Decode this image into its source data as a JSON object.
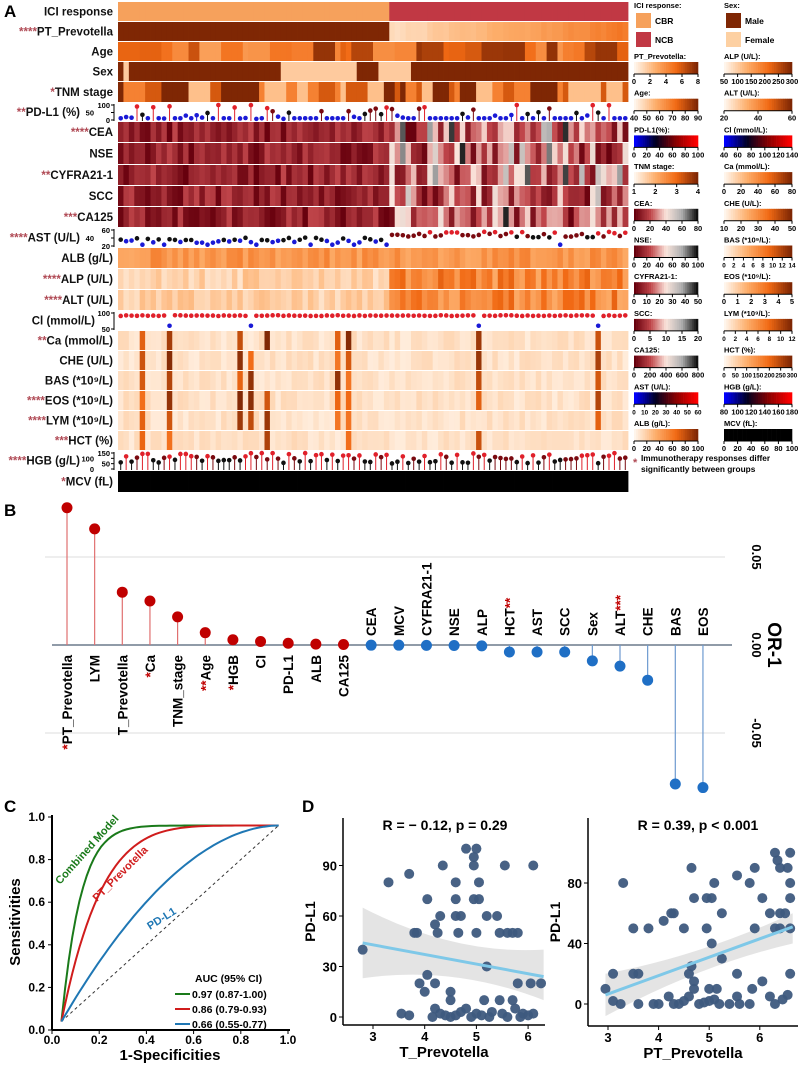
{
  "panels": {
    "a": "A",
    "b": "B",
    "c": "C",
    "d": "D"
  },
  "heatmap": {
    "n_columns": 94,
    "n_cbr": 50,
    "rows": [
      {
        "label": "ICI response",
        "stars": "",
        "palette": "group"
      },
      {
        "label": "PT_Prevotella",
        "stars": "****",
        "palette": "prevotella"
      },
      {
        "label": "Age",
        "stars": "",
        "palette": "orange-block"
      },
      {
        "label": "Sex",
        "stars": "",
        "palette": "binary"
      },
      {
        "label": "TNM stage",
        "stars": "*",
        "palette": "orange-level"
      },
      {
        "label": "PD-L1 (%)",
        "stars": "**",
        "palette": "lollipop-pdl1",
        "ticks": [
          "100",
          "50",
          "0"
        ]
      },
      {
        "label": "CEA",
        "stars": "****",
        "palette": "red-gray"
      },
      {
        "label": "NSE",
        "stars": "",
        "palette": "red-gray"
      },
      {
        "label": "CYFRA21-1",
        "stars": "**",
        "palette": "red-gray"
      },
      {
        "label": "SCC",
        "stars": "",
        "palette": "red-gray"
      },
      {
        "label": "CA125",
        "stars": "***",
        "palette": "red-gray"
      },
      {
        "label": "AST (U/L)",
        "stars": "****",
        "palette": "lollipop-ast",
        "ticks": [
          "60",
          "40",
          "20"
        ]
      },
      {
        "label": "ALB (g/L)",
        "stars": "",
        "palette": "orange-mid"
      },
      {
        "label": "ALP (U/L)",
        "stars": "****",
        "palette": "orange-split"
      },
      {
        "label": "ALT (U/L)",
        "stars": "****",
        "palette": "orange-split"
      },
      {
        "label": "Cl (mmol/L)",
        "stars": "",
        "palette": "lollipop-cl",
        "ticks": [
          "100",
          "50"
        ]
      },
      {
        "label": "Ca (mmol/L)",
        "stars": "**",
        "palette": "pale-spike"
      },
      {
        "label": "CHE (U/L)",
        "stars": "",
        "palette": "pale-spike"
      },
      {
        "label": "BAS (*10⁹/L)",
        "stars": "",
        "palette": "pale-spike"
      },
      {
        "label": "EOS (*10⁹/L)",
        "stars": "****",
        "palette": "pale-spike"
      },
      {
        "label": "LYM (*10⁹/L)",
        "stars": "****",
        "palette": "pale-spike"
      },
      {
        "label": "HCT (%)",
        "stars": "***",
        "palette": "pale-spike"
      },
      {
        "label": "HGB (g/L)",
        "stars": "****",
        "palette": "lollipop-hgb",
        "ticks": [
          "150",
          "100",
          "50",
          "0"
        ]
      },
      {
        "label": "MCV (fL)",
        "stars": "*",
        "palette": "gray"
      }
    ]
  },
  "legend": {
    "left": [
      {
        "title": "ICI response:",
        "type": "cat",
        "items": [
          {
            "label": "CBR",
            "color": "#f6a15c"
          },
          {
            "label": "NCB",
            "color": "#c13844"
          }
        ]
      },
      {
        "title": "PT_Prevotella:",
        "type": "orange",
        "ticks": [
          "0",
          "2",
          "4",
          "6",
          "8"
        ]
      },
      {
        "title": "Age:",
        "type": "orange",
        "ticks": [
          "40",
          "50",
          "60",
          "70",
          "80",
          "90"
        ]
      },
      {
        "title": "PD-L1(%):",
        "type": "blue-red",
        "ticks": [
          "0",
          "20",
          "40",
          "60",
          "80",
          "100"
        ]
      },
      {
        "title": "TNM stage:",
        "type": "orange",
        "ticks": [
          "1",
          "2",
          "3",
          "4"
        ]
      },
      {
        "title": "CEA:",
        "type": "red-gray",
        "ticks": [
          "0",
          "20",
          "40",
          "60",
          "80"
        ]
      },
      {
        "title": "NSE:",
        "type": "red-gray",
        "ticks": [
          "0",
          "20",
          "40",
          "60",
          "80",
          "100"
        ]
      },
      {
        "title": "CYFRA21-1:",
        "type": "red-gray",
        "ticks": [
          "0",
          "10",
          "20",
          "30",
          "40",
          "50"
        ]
      },
      {
        "title": "SCC:",
        "type": "red-gray",
        "ticks": [
          "0",
          "5",
          "10",
          "15",
          "20"
        ]
      },
      {
        "title": "CA125:",
        "type": "red-gray",
        "ticks": [
          "0",
          "200",
          "400",
          "600",
          "800"
        ]
      },
      {
        "title": "AST (U/L):",
        "type": "blue-red",
        "ticks": [
          "0",
          "10",
          "20",
          "30",
          "40",
          "50",
          "60"
        ]
      },
      {
        "title": "ALB (g/L):",
        "type": "orange",
        "ticks": [
          "0",
          "20",
          "40",
          "60",
          "80",
          "100"
        ]
      }
    ],
    "right": [
      {
        "title": "Sex:",
        "type": "cat",
        "items": [
          {
            "label": "Male",
            "color": "#7f2704"
          },
          {
            "label": "Female",
            "color": "#fdd0a2"
          }
        ]
      },
      {
        "title": "ALP (U/L):",
        "type": "orange",
        "ticks": [
          "50",
          "100",
          "150",
          "200",
          "250",
          "300"
        ]
      },
      {
        "title": "ALT (U/L):",
        "type": "orange",
        "ticks": [
          "20",
          "40",
          "60"
        ]
      },
      {
        "title": "Cl (mmol/L):",
        "type": "blue-red",
        "ticks": [
          "40",
          "60",
          "80",
          "100",
          "120",
          "140"
        ]
      },
      {
        "title": "Ca (mmol/L):",
        "type": "orange",
        "ticks": [
          "0",
          "20",
          "40",
          "60",
          "80"
        ]
      },
      {
        "title": "CHE (U/L):",
        "type": "orange",
        "ticks": [
          "10",
          "20",
          "30",
          "40",
          "50"
        ]
      },
      {
        "title": "BAS (*10⁹/L):",
        "type": "orange",
        "ticks": [
          "0",
          "2",
          "4",
          "6",
          "8",
          "10",
          "12",
          "14"
        ]
      },
      {
        "title": "EOS (*10⁹/L):",
        "type": "orange",
        "ticks": [
          "0",
          "1",
          "2",
          "3",
          "4",
          "5"
        ]
      },
      {
        "title": "LYM (*10⁹/L):",
        "type": "orange",
        "ticks": [
          "0",
          "2",
          "4",
          "6",
          "8",
          "10",
          "12"
        ]
      },
      {
        "title": "HCT (%):",
        "type": "orange",
        "ticks": [
          "0",
          "50",
          "100",
          "150",
          "200",
          "250",
          "300"
        ]
      },
      {
        "title": "HGB (g/L):",
        "type": "blue-red",
        "ticks": [
          "80",
          "100",
          "120",
          "140",
          "160",
          "180"
        ]
      },
      {
        "title": "MCV (fL):",
        "type": "gray",
        "ticks": [
          "0",
          "20",
          "40",
          "60",
          "80",
          "100"
        ]
      }
    ],
    "note_star": "*",
    "note_line1": "Immunotherapy responses differ",
    "note_line2": "significantly between groups"
  },
  "chart_data": [
    {
      "type": "lollipop",
      "panel": "B",
      "ylabel": "OR-1",
      "ylim": [
        -0.085,
        0.08
      ],
      "yticks": [
        "0.05",
        "0.00",
        "-0.05"
      ],
      "ytick_values": [
        0.05,
        0.0,
        -0.05
      ],
      "colors": {
        "positive": "#c00000",
        "negative": "#1f6fc5",
        "star": "#c00000"
      },
      "categories": [
        {
          "name": "PT_Prevotella",
          "value": 0.078,
          "stars": "*"
        },
        {
          "name": "LYM",
          "value": 0.066,
          "stars": ""
        },
        {
          "name": "T_Prevotella",
          "value": 0.03,
          "stars": ""
        },
        {
          "name": "Ca",
          "value": 0.025,
          "stars": "*"
        },
        {
          "name": "TNM_stage",
          "value": 0.016,
          "stars": ""
        },
        {
          "name": "Age",
          "value": 0.007,
          "stars": "**"
        },
        {
          "name": "HGB",
          "value": 0.003,
          "stars": "*"
        },
        {
          "name": "CI",
          "value": 0.002,
          "stars": ""
        },
        {
          "name": "PD-L1",
          "value": 0.001,
          "stars": ""
        },
        {
          "name": "ALB",
          "value": 0.0005,
          "stars": ""
        },
        {
          "name": "CA125",
          "value": 0.0003,
          "stars": ""
        },
        {
          "name": "CEA",
          "value": -0.0001,
          "stars": ""
        },
        {
          "name": "MCV",
          "value": -0.0001,
          "stars": ""
        },
        {
          "name": "CYFRA21-1",
          "value": -0.0002,
          "stars": ""
        },
        {
          "name": "NSE",
          "value": -0.0003,
          "stars": ""
        },
        {
          "name": "ALP",
          "value": -0.0005,
          "stars": ""
        },
        {
          "name": "HCT",
          "value": -0.004,
          "stars": "**"
        },
        {
          "name": "AST",
          "value": -0.004,
          "stars": ""
        },
        {
          "name": "SCC",
          "value": -0.004,
          "stars": ""
        },
        {
          "name": "Sex",
          "value": -0.009,
          "stars": ""
        },
        {
          "name": "ALT",
          "value": -0.012,
          "stars": "***"
        },
        {
          "name": "CHE",
          "value": -0.02,
          "stars": ""
        },
        {
          "name": "BAS",
          "value": -0.079,
          "stars": ""
        },
        {
          "name": "EOS",
          "value": -0.081,
          "stars": ""
        }
      ]
    },
    {
      "type": "line",
      "panel": "C",
      "xlabel": "1-Specificities",
      "ylabel": "Sensitivities",
      "xlim": [
        0,
        1
      ],
      "ylim": [
        0,
        1
      ],
      "xticks": [
        "0.0",
        "0.2",
        "0.4",
        "0.6",
        "0.8",
        "1.0"
      ],
      "yticks": [
        "0.0",
        "0.2",
        "0.4",
        "0.6",
        "0.8",
        "1.0"
      ],
      "legend_title": "AUC (95% CI)",
      "series": [
        {
          "name": "Combined Model",
          "auc_label": "0.97 (0.87-1.00)",
          "auc": 0.97,
          "color": "#1a7a1a",
          "shape": 11
        },
        {
          "name": "PT_Prevotella",
          "auc_label": "0.86 (0.79-0.93)",
          "auc": 0.86,
          "color": "#d01c1c",
          "shape": 5.5
        },
        {
          "name": "PD-L1",
          "auc_label": "0.66 (0.55-0.77)",
          "auc": 0.66,
          "color": "#1f77b4",
          "shape": 1.9
        }
      ]
    },
    {
      "type": "scatter",
      "panel": "D-left",
      "title": "R = − 0.12, p = 0.29",
      "xlabel": "T_Prevotella",
      "ylabel": "PD-L1",
      "xlim": [
        2.55,
        6.35
      ],
      "ylim": [
        -5,
        117
      ],
      "xticks": [
        3,
        4,
        5,
        6
      ],
      "yticks": [
        0,
        30,
        60,
        90
      ],
      "fit": {
        "x": [
          2.8,
          6.3
        ],
        "y": [
          44,
          24
        ],
        "ci_low": [
          23,
          10
        ],
        "ci_high": [
          65,
          40
        ]
      },
      "points": [
        [
          2.8,
          40
        ],
        [
          3.3,
          80
        ],
        [
          3.7,
          85
        ],
        [
          3.8,
          50
        ],
        [
          3.85,
          50
        ],
        [
          4.05,
          70
        ],
        [
          4.35,
          90
        ],
        [
          4.2,
          55
        ],
        [
          4.25,
          50
        ],
        [
          4.3,
          60
        ],
        [
          4.6,
          80
        ],
        [
          4.6,
          60
        ],
        [
          4.7,
          60
        ],
        [
          4.65,
          50
        ],
        [
          4.6,
          70
        ],
        [
          4.8,
          100
        ],
        [
          4.95,
          95
        ],
        [
          4.95,
          90
        ],
        [
          5.0,
          100
        ],
        [
          4.95,
          70
        ],
        [
          5.05,
          80
        ],
        [
          5.05,
          70
        ],
        [
          5.0,
          50
        ],
        [
          5.2,
          60
        ],
        [
          5.4,
          60
        ],
        [
          5.55,
          90
        ],
        [
          5.45,
          50
        ],
        [
          5.6,
          50
        ],
        [
          5.7,
          50
        ],
        [
          5.8,
          50
        ],
        [
          6.1,
          90
        ],
        [
          5.2,
          30
        ],
        [
          5.8,
          20
        ],
        [
          6.05,
          20
        ],
        [
          6.25,
          20
        ],
        [
          3.9,
          20
        ],
        [
          4.0,
          15
        ],
        [
          4.05,
          25
        ],
        [
          4.2,
          20
        ],
        [
          4.5,
          15
        ],
        [
          4.5,
          10
        ],
        [
          3.55,
          2
        ],
        [
          3.7,
          1
        ],
        [
          4.2,
          5
        ],
        [
          4.3,
          2
        ],
        [
          4.5,
          0
        ],
        [
          4.7,
          3
        ],
        [
          4.8,
          5
        ],
        [
          5.0,
          2
        ],
        [
          5.1,
          1
        ],
        [
          5.15,
          10
        ],
        [
          5.3,
          3
        ],
        [
          5.45,
          10
        ],
        [
          5.5,
          2
        ],
        [
          5.7,
          10
        ],
        [
          5.75,
          5
        ],
        [
          5.9,
          2
        ],
        [
          6.0,
          1
        ],
        [
          6.1,
          2
        ],
        [
          4.4,
          1
        ],
        [
          4.9,
          0
        ],
        [
          5.6,
          0
        ],
        [
          4.15,
          0
        ],
        [
          4.6,
          1
        ],
        [
          5.25,
          0
        ],
        [
          5.85,
          0
        ]
      ]
    },
    {
      "type": "scatter",
      "panel": "D-right",
      "title": "R = 0.39, p < 0.001",
      "xlabel": "PT_Prevotella",
      "ylabel": "PD-L1",
      "xlim": [
        2.6,
        6.7
      ],
      "ylim": [
        -14,
        118
      ],
      "xticks": [
        3,
        4,
        5,
        6
      ],
      "yticks": [
        0,
        40,
        80
      ],
      "fit": {
        "x": [
          2.95,
          6.65
        ],
        "y": [
          6,
          51
        ],
        "ci_low": [
          -8,
          40
        ],
        "ci_high": [
          20,
          60
        ]
      },
      "points": [
        [
          2.95,
          10
        ],
        [
          3.1,
          20
        ],
        [
          3.1,
          2
        ],
        [
          3.25,
          0
        ],
        [
          3.3,
          80
        ],
        [
          3.5,
          50
        ],
        [
          3.5,
          20
        ],
        [
          3.6,
          20
        ],
        [
          3.6,
          0
        ],
        [
          3.8,
          50
        ],
        [
          4.1,
          55
        ],
        [
          4.25,
          60
        ],
        [
          4.3,
          60
        ],
        [
          4.5,
          50
        ],
        [
          4.65,
          90
        ],
        [
          4.7,
          70
        ],
        [
          4.95,
          70
        ],
        [
          5.05,
          70
        ],
        [
          4.95,
          50
        ],
        [
          5.1,
          80
        ],
        [
          5.05,
          40
        ],
        [
          5.25,
          60
        ],
        [
          5.25,
          30
        ],
        [
          5.55,
          85
        ],
        [
          5.55,
          20
        ],
        [
          5.8,
          80
        ],
        [
          5.9,
          90
        ],
        [
          5.9,
          50
        ],
        [
          6.05,
          70
        ],
        [
          6.05,
          15
        ],
        [
          6.2,
          60
        ],
        [
          6.3,
          100
        ],
        [
          6.35,
          95
        ],
        [
          6.4,
          90
        ],
        [
          6.4,
          60
        ],
        [
          6.5,
          60
        ],
        [
          6.55,
          90
        ],
        [
          6.6,
          100
        ],
        [
          6.6,
          80
        ],
        [
          6.6,
          70
        ],
        [
          6.6,
          50
        ],
        [
          6.6,
          20
        ],
        [
          6.3,
          50
        ],
        [
          6.4,
          50
        ],
        [
          4.6,
          20
        ],
        [
          4.65,
          25
        ],
        [
          4.7,
          15
        ],
        [
          4.7,
          10
        ],
        [
          5.0,
          10
        ],
        [
          5.15,
          10
        ],
        [
          5.85,
          10
        ],
        [
          4.0,
          0
        ],
        [
          4.2,
          5
        ],
        [
          4.3,
          0
        ],
        [
          4.5,
          2
        ],
        [
          4.6,
          5
        ],
        [
          4.8,
          0
        ],
        [
          5.0,
          2
        ],
        [
          5.2,
          0
        ],
        [
          5.4,
          0
        ],
        [
          5.55,
          5
        ],
        [
          5.6,
          0
        ],
        [
          5.8,
          0
        ],
        [
          6.2,
          5
        ],
        [
          6.3,
          0
        ],
        [
          6.45,
          3
        ],
        [
          6.55,
          6
        ],
        [
          3.9,
          0
        ],
        [
          4.4,
          0
        ],
        [
          4.9,
          1
        ],
        [
          5.1,
          3
        ]
      ]
    }
  ]
}
